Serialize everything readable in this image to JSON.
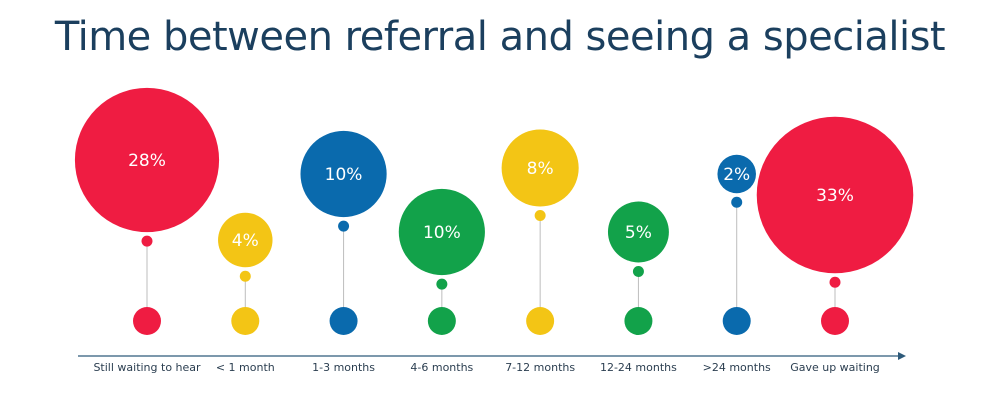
{
  "title": "Time between referral and seeing a specialist",
  "colors": {
    "title": "#1b3f5e",
    "text": "#2b3e50",
    "stem": "#bdbdbd",
    "axis": "#2e5a7a",
    "red": "#ef1c42",
    "yellow": "#f3c515",
    "blue": "#0a6aad",
    "green": "#12a24a"
  },
  "chart_data": {
    "type": "bubble",
    "title": "Time between referral and seeing a specialist",
    "xlabel": "",
    "ylabel": "",
    "unit": "%",
    "categories": [
      "Still waiting to hear",
      "< 1 month",
      "1-3 months",
      "4-6 months",
      "7-12 months",
      "12-24 months",
      ">24 months",
      "Gave up waiting"
    ],
    "values": [
      28,
      4,
      10,
      10,
      8,
      5,
      2,
      33
    ],
    "labels": [
      "28%",
      "4%",
      "10%",
      "10%",
      "8%",
      "5%",
      "2%",
      "33%"
    ],
    "point_colors": [
      "red",
      "yellow",
      "blue",
      "green",
      "yellow",
      "green",
      "blue",
      "red"
    ]
  }
}
